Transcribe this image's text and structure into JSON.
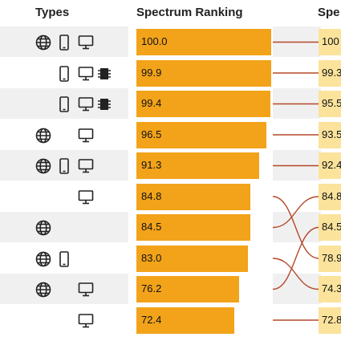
{
  "header": {
    "types": "Types",
    "ranking": "Spectrum Ranking",
    "right_partial": "Spe"
  },
  "colors": {
    "bar": "#f2a31a",
    "right_box": "#fbe39c",
    "link": "#b5482a"
  },
  "bar_max": 100,
  "rows": [
    {
      "value": "100.0",
      "num": 100.0,
      "right": "100",
      "icons": [
        "globe-icon",
        "phone-icon",
        "desktop-icon"
      ]
    },
    {
      "value": "99.9",
      "num": 99.9,
      "right": "99.3",
      "icons": [
        "phone-icon",
        "desktop-icon",
        "chip-icon"
      ]
    },
    {
      "value": "99.4",
      "num": 99.4,
      "right": "95.5",
      "icons": [
        "phone-icon",
        "desktop-icon",
        "chip-icon"
      ]
    },
    {
      "value": "96.5",
      "num": 96.5,
      "right": "93.5",
      "icons": [
        "globe-icon",
        "desktop-icon"
      ]
    },
    {
      "value": "91.3",
      "num": 91.3,
      "right": "92.4",
      "icons": [
        "globe-icon",
        "phone-icon",
        "desktop-icon"
      ]
    },
    {
      "value": "84.8",
      "num": 84.8,
      "right": "84.8",
      "icons": [
        "desktop-icon"
      ]
    },
    {
      "value": "84.5",
      "num": 84.5,
      "right": "84.5",
      "icons": [
        "globe-icon"
      ]
    },
    {
      "value": "83.0",
      "num": 83.0,
      "right": "78.9",
      "icons": [
        "globe-icon",
        "phone-icon"
      ]
    },
    {
      "value": "76.2",
      "num": 76.2,
      "right": "74.3",
      "icons": [
        "globe-icon",
        "desktop-icon"
      ]
    },
    {
      "value": "72.4",
      "num": 72.4,
      "right": "72.8",
      "icons": [
        "desktop-icon"
      ]
    }
  ],
  "links": [
    [
      0,
      0
    ],
    [
      1,
      1
    ],
    [
      2,
      2
    ],
    [
      3,
      3
    ],
    [
      4,
      4
    ],
    [
      5,
      7
    ],
    [
      6,
      5
    ],
    [
      7,
      8
    ],
    [
      8,
      6
    ],
    [
      9,
      9
    ]
  ]
}
